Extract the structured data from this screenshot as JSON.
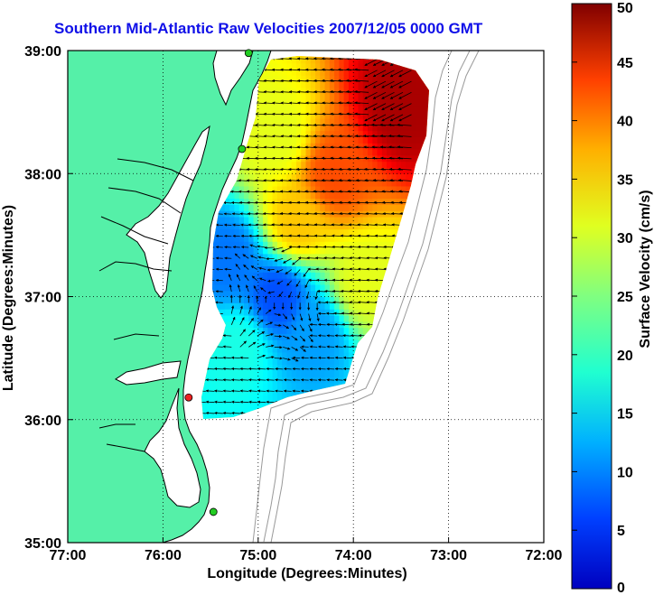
{
  "chart_data": {
    "type": "heatmap",
    "title": "Southern Mid-Atlantic Raw Velocities 2007/12/05 0000 GMT",
    "xlabel": "Longitude (Degrees:Minutes)",
    "ylabel": "Latitude (Degrees:Minutes)",
    "xlim": [
      -77,
      -72
    ],
    "ylim": [
      35,
      39
    ],
    "x_ticks": [
      "77:00",
      "76:00",
      "75:00",
      "74:00",
      "73:00",
      "72:00"
    ],
    "y_ticks": [
      "39:00",
      "38:00",
      "37:00",
      "36:00",
      "35:00"
    ],
    "grid": "on (dotted)",
    "colorbar": {
      "label": "Surface Velocity (cm/s)",
      "range": [
        0,
        50
      ],
      "ticks": [
        "0",
        "5",
        "10",
        "15",
        "20",
        "25",
        "30",
        "35",
        "40",
        "45",
        "50"
      ],
      "colormap": "jet"
    },
    "land_color": "#55f0a8",
    "markers": [
      {
        "name": "site",
        "lon": -75.1,
        "lat": 38.98,
        "color": "#22cc22"
      },
      {
        "name": "site",
        "lon": -75.17,
        "lat": 38.2,
        "color": "#22cc22"
      },
      {
        "name": "site",
        "lon": -75.73,
        "lat": 36.18,
        "color": "#ee2222"
      },
      {
        "name": "site",
        "lon": -75.47,
        "lat": 35.25,
        "color": "#22cc22"
      }
    ],
    "velocity_field": {
      "description_of_regions": [
        {
          "lon": -73.5,
          "lat": 38.55,
          "speed": 48
        },
        {
          "lon": -74.2,
          "lat": 38.0,
          "speed": 40
        },
        {
          "lon": -74.6,
          "lat": 37.6,
          "speed": 34
        },
        {
          "lon": -74.8,
          "lat": 38.3,
          "speed": 30
        },
        {
          "lon": -74.8,
          "lat": 37.0,
          "speed": 10
        },
        {
          "lon": -74.4,
          "lat": 36.7,
          "speed": 14
        },
        {
          "lon": -75.2,
          "lat": 36.6,
          "speed": 20
        },
        {
          "lon": -75.3,
          "lat": 37.3,
          "speed": 12
        },
        {
          "lon": -73.9,
          "lat": 37.1,
          "speed": 30
        }
      ]
    }
  }
}
